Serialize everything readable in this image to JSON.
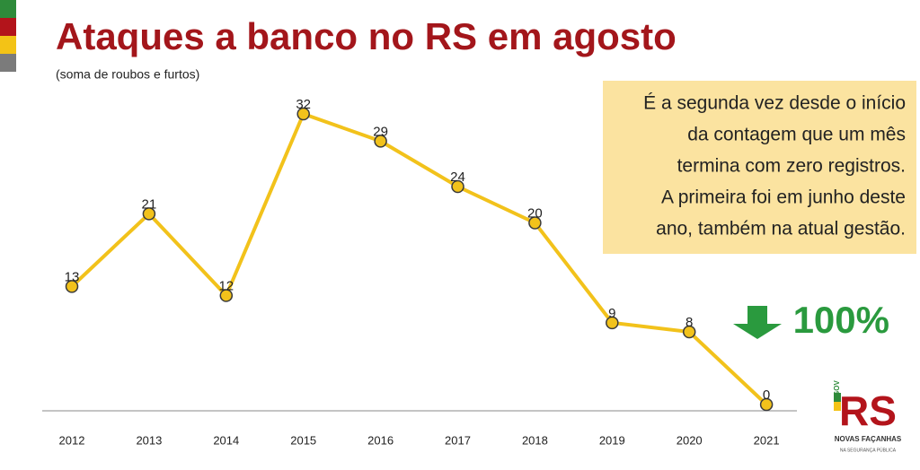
{
  "chart_data": {
    "type": "line",
    "title": "Ataques a banco no RS em agosto",
    "subtitle": "(soma de roubos e furtos)",
    "categories": [
      "2012",
      "2013",
      "2014",
      "2015",
      "2016",
      "2017",
      "2018",
      "2019",
      "2020",
      "2021"
    ],
    "values": [
      13,
      21,
      12,
      32,
      29,
      24,
      20,
      9,
      8,
      0
    ],
    "color": "#f2c21b",
    "ylim": [
      0,
      32
    ],
    "annotation": [
      "É a segunda vez desde o início",
      "da contagem que um mês",
      "termina com zero registros.",
      "A primeira foi em junho deste",
      "ano, também na atual gestão."
    ],
    "callout": "100%",
    "logo": {
      "gov": "GOV",
      "mark": "RS",
      "name": "NOVAS FAÇANHAS",
      "tagline": "NA SEGURANÇA PÚBLICA"
    }
  }
}
